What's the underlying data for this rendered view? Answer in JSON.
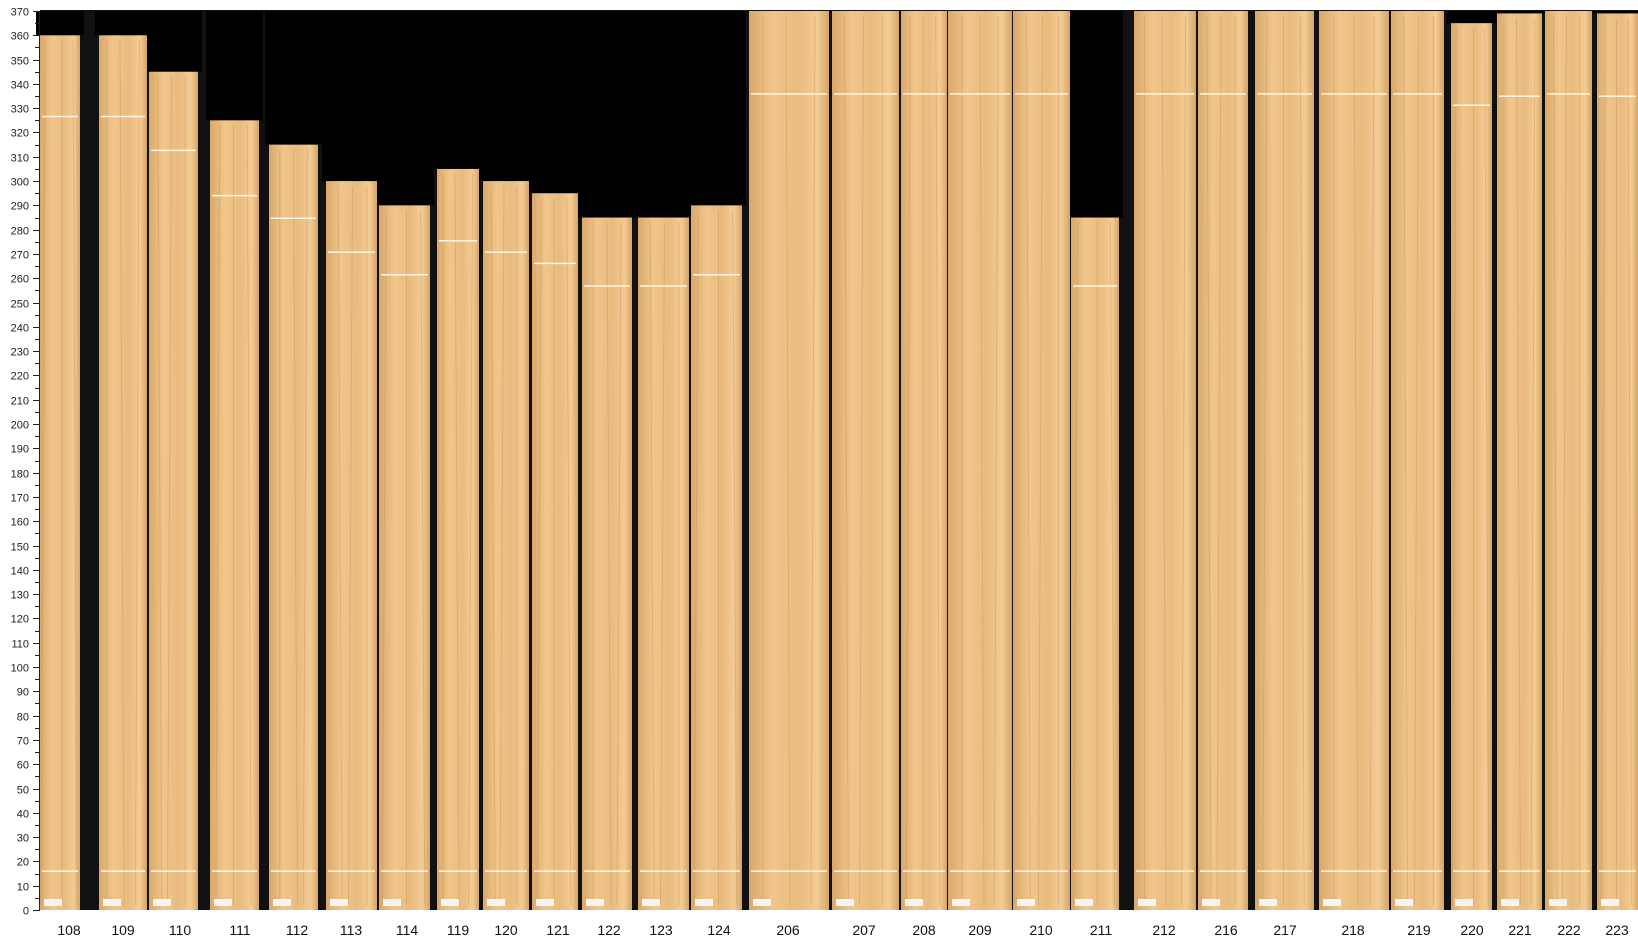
{
  "chart_data": {
    "type": "bar",
    "title": "",
    "xlabel": "",
    "ylabel": "",
    "ylim": [
      0,
      370
    ],
    "ytick_step": 10,
    "grid": false,
    "categories": [
      "108",
      "109",
      "110",
      "111",
      "112",
      "113",
      "114",
      "119",
      "120",
      "121",
      "122",
      "123",
      "124",
      "206",
      "207",
      "208",
      "209",
      "210",
      "211",
      "212",
      "216",
      "217",
      "218",
      "219",
      "220",
      "221",
      "222",
      "223"
    ],
    "values": [
      360,
      360,
      345,
      325,
      315,
      300,
      290,
      305,
      300,
      295,
      285,
      285,
      290,
      370,
      370,
      370,
      370,
      370,
      285,
      370,
      370,
      370,
      370,
      370,
      365,
      369,
      370,
      369
    ],
    "colors": {
      "background": "#000000",
      "gap": "#111111",
      "wood_light": "#f2c98e",
      "wood_dark": "#d9a86a",
      "mark_line": "#fff5e0"
    }
  }
}
